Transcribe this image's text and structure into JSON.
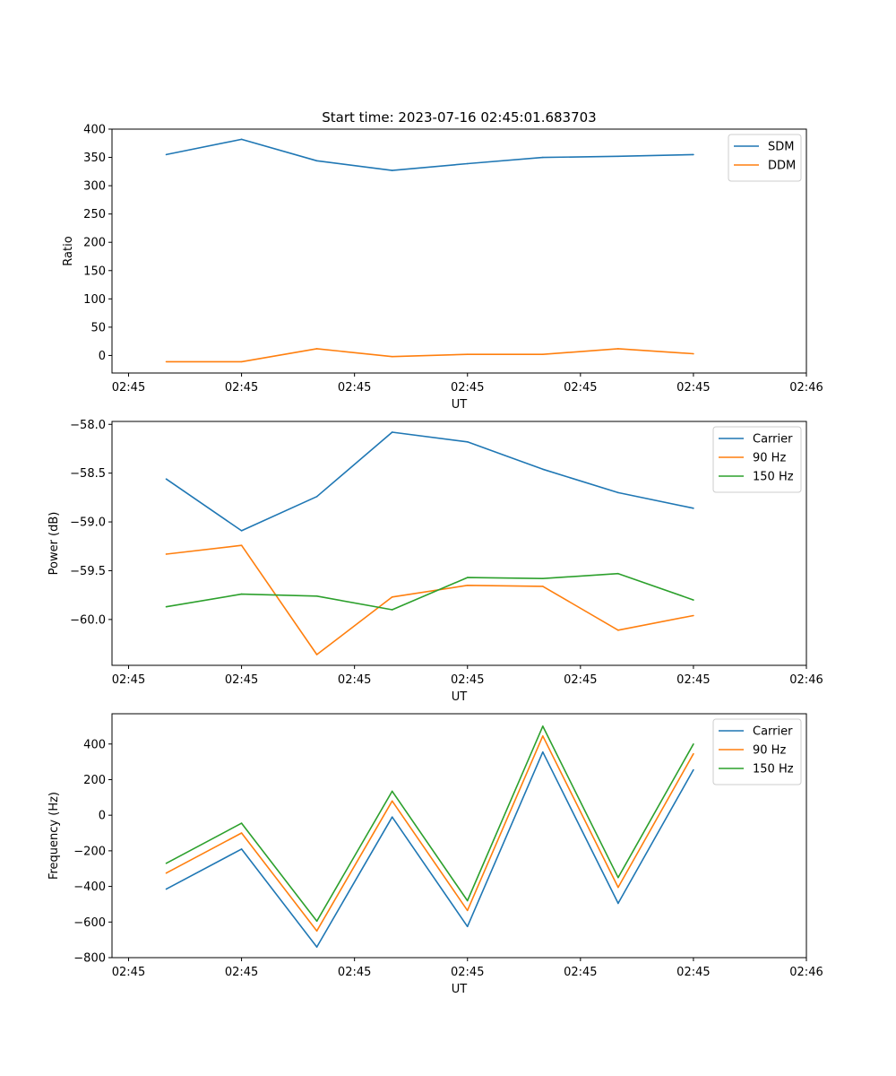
{
  "figure_title": "Start time: 2023-07-16 02:45:01.683703",
  "chart_data": [
    {
      "type": "line",
      "title": "Start time: 2023-07-16 02:45:01.683703",
      "xlabel": "UT",
      "ylabel": "Ratio",
      "x": [
        1,
        2,
        3,
        4,
        5,
        6,
        7,
        8
      ],
      "xlim": [
        0.28,
        9.5
      ],
      "ylim": [
        -31,
        400
      ],
      "yticks": [
        0,
        50,
        100,
        150,
        200,
        250,
        300,
        350,
        400
      ],
      "ytick_labels": [
        "0",
        "50",
        "100",
        "150",
        "200",
        "250",
        "300",
        "350",
        "400"
      ],
      "xticks": [
        0.5,
        2,
        3.5,
        5,
        6.5,
        8,
        9.5
      ],
      "xtick_labels": [
        "02:45",
        "02:45",
        "02:45",
        "02:45",
        "02:45",
        "02:45",
        "02:46"
      ],
      "legend_position": "top-right",
      "series": [
        {
          "name": "SDM",
          "color": "#1f77b4",
          "values": [
            355,
            382,
            344,
            327,
            339,
            350,
            352,
            355
          ]
        },
        {
          "name": "DDM",
          "color": "#ff7f0e",
          "values": [
            -11,
            -11,
            12,
            -2,
            2,
            2,
            12,
            3
          ]
        }
      ]
    },
    {
      "type": "line",
      "title": "",
      "xlabel": "UT",
      "ylabel": "Power (dB)",
      "x": [
        1,
        2,
        3,
        4,
        5,
        6,
        7,
        8
      ],
      "xlim": [
        0.28,
        9.5
      ],
      "ylim": [
        -60.47,
        -57.97
      ],
      "yticks": [
        -60.0,
        -59.5,
        -59.0,
        -58.5,
        -58.0
      ],
      "ytick_labels": [
        "−60.0",
        "−59.5",
        "−59.0",
        "−58.5",
        "−58.0"
      ],
      "xticks": [
        0.5,
        2,
        3.5,
        5,
        6.5,
        8,
        9.5
      ],
      "xtick_labels": [
        "02:45",
        "02:45",
        "02:45",
        "02:45",
        "02:45",
        "02:45",
        "02:46"
      ],
      "legend_position": "top-right",
      "series": [
        {
          "name": "Carrier",
          "color": "#1f77b4",
          "values": [
            -58.56,
            -59.09,
            -58.74,
            -58.08,
            -58.18,
            -58.46,
            -58.7,
            -58.86
          ]
        },
        {
          "name": "90 Hz",
          "color": "#ff7f0e",
          "values": [
            -59.33,
            -59.24,
            -60.36,
            -59.77,
            -59.65,
            -59.66,
            -60.11,
            -59.96
          ]
        },
        {
          "name": "150 Hz",
          "color": "#2ca02c",
          "values": [
            -59.87,
            -59.74,
            -59.76,
            -59.9,
            -59.57,
            -59.58,
            -59.53,
            -59.8
          ]
        }
      ]
    },
    {
      "type": "line",
      "title": "",
      "xlabel": "UT",
      "ylabel": "Frequency (Hz)",
      "x": [
        1,
        2,
        3,
        4,
        5,
        6,
        7,
        8
      ],
      "xlim": [
        0.28,
        9.5
      ],
      "ylim": [
        -800,
        570
      ],
      "yticks": [
        -800,
        -600,
        -400,
        -200,
        0,
        200,
        400
      ],
      "ytick_labels": [
        "−800",
        "−600",
        "−400",
        "−200",
        "0",
        "200",
        "400"
      ],
      "xticks": [
        0.5,
        2,
        3.5,
        5,
        6.5,
        8,
        9.5
      ],
      "xtick_labels": [
        "02:45",
        "02:45",
        "02:45",
        "02:45",
        "02:45",
        "02:45",
        "02:46"
      ],
      "legend_position": "top-right",
      "series": [
        {
          "name": "Carrier",
          "color": "#1f77b4",
          "values": [
            -415,
            -190,
            -740,
            -10,
            -625,
            355,
            -495,
            255
          ]
        },
        {
          "name": "90 Hz",
          "color": "#ff7f0e",
          "values": [
            -325,
            -100,
            -650,
            80,
            -535,
            445,
            -405,
            345
          ]
        },
        {
          "name": "150 Hz",
          "color": "#2ca02c",
          "values": [
            -270,
            -45,
            -595,
            135,
            -480,
            500,
            -350,
            400
          ]
        }
      ]
    }
  ]
}
